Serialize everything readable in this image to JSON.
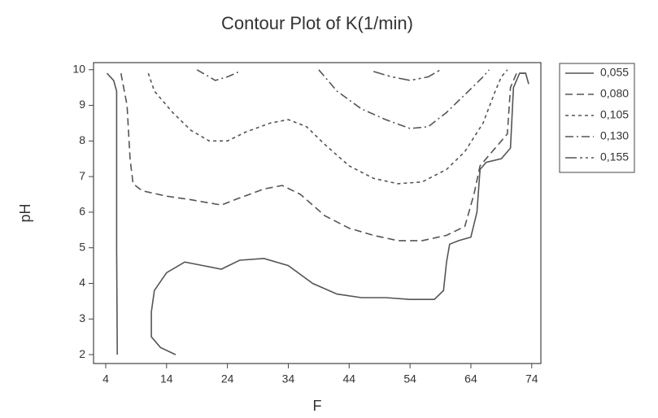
{
  "chart_data": {
    "type": "contour",
    "title": "Contour Plot of K(1/min)",
    "x_label": "F",
    "y_label": "pH",
    "xlim": [
      2,
      75.5
    ],
    "ylim": [
      1.75,
      10.2
    ],
    "xticks": [
      4,
      14,
      24,
      34,
      44,
      54,
      64,
      74
    ],
    "yticks": [
      2,
      3,
      4,
      5,
      6,
      7,
      8,
      9,
      10
    ],
    "series": [
      {
        "name": "0,055",
        "color": "#555555",
        "linestyle": "solid",
        "x": [
          5.9,
          5.8,
          5.8,
          5.3,
          4.2,
          null,
          15.5,
          13,
          11.5,
          11.5,
          12,
          14,
          17,
          20,
          23,
          26,
          30,
          34,
          38,
          42,
          46,
          50,
          54,
          58,
          59.5,
          60,
          60.5,
          62,
          64,
          65,
          65.5,
          66.5,
          69,
          70.5,
          71,
          72,
          73,
          73.5
        ],
        "values": [
          2.0,
          5.0,
          9.4,
          9.7,
          9.9,
          null,
          2.0,
          2.2,
          2.5,
          3.2,
          3.8,
          4.3,
          4.6,
          4.5,
          4.4,
          4.65,
          4.7,
          4.5,
          4.0,
          3.7,
          3.6,
          3.6,
          3.55,
          3.55,
          3.8,
          4.6,
          5.1,
          5.2,
          5.3,
          6.0,
          7.2,
          7.4,
          7.5,
          7.8,
          9.5,
          9.9,
          9.9,
          9.6
        ]
      },
      {
        "name": "0,080",
        "color": "#555555",
        "linestyle": "dashed",
        "x": [
          6.5,
          7.5,
          8,
          8.5,
          10,
          14,
          18,
          23,
          26,
          30,
          33,
          36,
          40,
          44,
          48,
          52,
          56,
          60,
          63,
          64.5,
          65.5,
          67,
          69,
          70,
          70.5,
          71.5,
          73
        ],
        "values": [
          9.9,
          9.0,
          7.5,
          6.8,
          6.6,
          6.45,
          6.35,
          6.2,
          6.4,
          6.65,
          6.75,
          6.5,
          5.9,
          5.55,
          5.35,
          5.2,
          5.2,
          5.35,
          5.6,
          6.5,
          7.3,
          7.6,
          8.0,
          8.2,
          9.5,
          9.9,
          9.9
        ]
      },
      {
        "name": "0,105",
        "color": "#555555",
        "linestyle": "dotted",
        "x": [
          11,
          12,
          15,
          18,
          21,
          24,
          27,
          31,
          34,
          37,
          40,
          44,
          48,
          52,
          56,
          60,
          63,
          66,
          68,
          69,
          70
        ],
        "values": [
          9.9,
          9.4,
          8.8,
          8.3,
          8.0,
          8.0,
          8.25,
          8.5,
          8.6,
          8.4,
          7.9,
          7.3,
          6.95,
          6.8,
          6.85,
          7.2,
          7.7,
          8.5,
          9.4,
          9.8,
          10.0
        ]
      },
      {
        "name": "0,130",
        "color": "#555555",
        "linestyle": "dashdot",
        "x": [
          19,
          21,
          22,
          24,
          26,
          null,
          39,
          42,
          46,
          50,
          54,
          57,
          60,
          63,
          66,
          67
        ],
        "values": [
          10.0,
          9.8,
          9.7,
          9.8,
          9.95,
          null,
          10.0,
          9.4,
          8.9,
          8.6,
          8.35,
          8.4,
          8.8,
          9.3,
          9.8,
          10.0
        ]
      },
      {
        "name": "0,155",
        "color": "#555555",
        "linestyle": "longdash",
        "x": [
          48,
          51,
          54,
          57,
          59
        ],
        "values": [
          9.95,
          9.8,
          9.7,
          9.8,
          10.0
        ]
      }
    ]
  }
}
